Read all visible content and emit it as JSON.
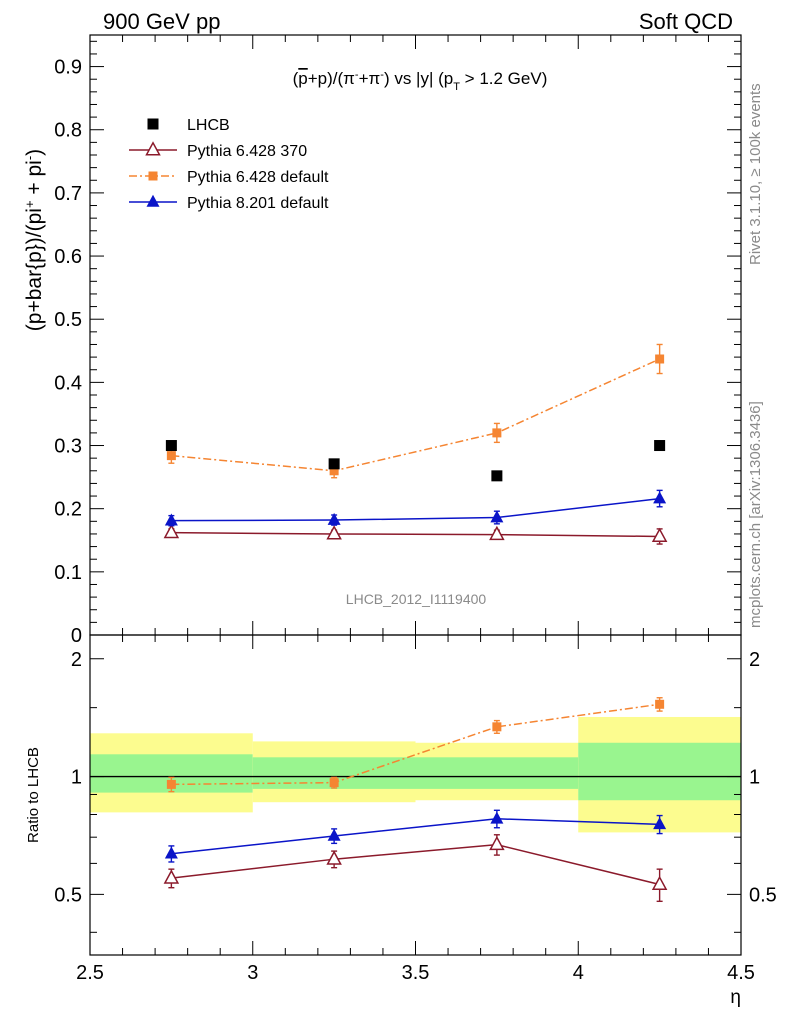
{
  "header": {
    "left": "900 GeV pp",
    "right": "Soft QCD"
  },
  "side_labels": {
    "rivet": "Rivet 3.1.10, ≥ 100k events",
    "mcplots": "mcplots.cern.ch [arXiv:1306.3436]"
  },
  "chart_data": [
    {
      "type": "scatter",
      "title": "(p̄+p)/(π⁻+π⁻) vs |y| (p_T > 1.2 GeV)",
      "ylabel": "(p+bar{p})/(pi⁺ + pi⁻)",
      "watermark": "LHCB_2012_I1119400",
      "xlim": [
        2.5,
        4.5
      ],
      "ylim": [
        0,
        0.95
      ],
      "yticks": [
        "0",
        "0.1",
        "0.2",
        "0.3",
        "0.4",
        "0.5",
        "0.6",
        "0.7",
        "0.8",
        "0.9"
      ],
      "grid": false,
      "legend_position": "top-left",
      "x": [
        2.75,
        3.25,
        3.75,
        4.25
      ],
      "series": [
        {
          "name": "LHCB",
          "color": "#000000",
          "marker": "square",
          "values": [
            0.3,
            0.271,
            0.252,
            0.3
          ]
        },
        {
          "name": "Pythia 6.428 370",
          "color": "#8b1a2b",
          "marker": "open-triangle",
          "line": "solid",
          "values": [
            0.162,
            0.16,
            0.159,
            0.156
          ],
          "err": [
            0.006,
            0.006,
            0.007,
            0.012
          ]
        },
        {
          "name": "Pythia 6.428 default",
          "color": "#f58532",
          "marker": "square",
          "line": "dashdot",
          "values": [
            0.284,
            0.26,
            0.32,
            0.437
          ],
          "err": [
            0.012,
            0.011,
            0.015,
            0.023
          ]
        },
        {
          "name": "Pythia 8.201 default",
          "color": "#0a14c8",
          "marker": "triangle",
          "line": "solid",
          "values": [
            0.181,
            0.182,
            0.186,
            0.216
          ],
          "err": [
            0.008,
            0.008,
            0.01,
            0.013
          ]
        }
      ]
    },
    {
      "type": "scatter",
      "ylabel": "Ratio to LHCB",
      "xlabel": "η",
      "xlim": [
        2.5,
        4.5
      ],
      "ylim": [
        0.35,
        2.3
      ],
      "xticks": [
        "2.5",
        "3",
        "3.5",
        "4",
        "4.5"
      ],
      "yticks": [
        "0.5",
        "1",
        "2"
      ],
      "x": [
        2.75,
        3.25,
        3.75,
        4.25
      ],
      "bands": {
        "bins": [
          [
            2.5,
            3.0
          ],
          [
            3.0,
            3.5
          ],
          [
            3.5,
            4.0
          ],
          [
            4.0,
            4.5
          ]
        ],
        "inner": [
          [
            0.91,
            1.14
          ],
          [
            0.93,
            1.12
          ],
          [
            0.93,
            1.12
          ],
          [
            0.87,
            1.22
          ]
        ],
        "outer": [
          [
            0.81,
            1.29
          ],
          [
            0.86,
            1.23
          ],
          [
            0.87,
            1.22
          ],
          [
            0.72,
            1.42
          ]
        ],
        "inner_color": "#99f58f",
        "outer_color": "#fcfc8f"
      },
      "series": [
        {
          "name": "Pythia 6.428 370",
          "color": "#8b1a2b",
          "marker": "open-triangle",
          "line": "solid",
          "values": [
            0.55,
            0.615,
            0.67,
            0.53
          ],
          "err": [
            0.03,
            0.03,
            0.04,
            0.05
          ]
        },
        {
          "name": "Pythia 6.428 default",
          "color": "#f58532",
          "marker": "square",
          "line": "dashdot",
          "values": [
            0.955,
            0.965,
            1.34,
            1.53
          ],
          "err": [
            0.04,
            0.03,
            0.05,
            0.06
          ]
        },
        {
          "name": "Pythia 8.201 default",
          "color": "#0a14c8",
          "marker": "triangle",
          "line": "solid",
          "values": [
            0.635,
            0.705,
            0.78,
            0.755
          ],
          "err": [
            0.03,
            0.03,
            0.04,
            0.04
          ]
        }
      ]
    }
  ]
}
